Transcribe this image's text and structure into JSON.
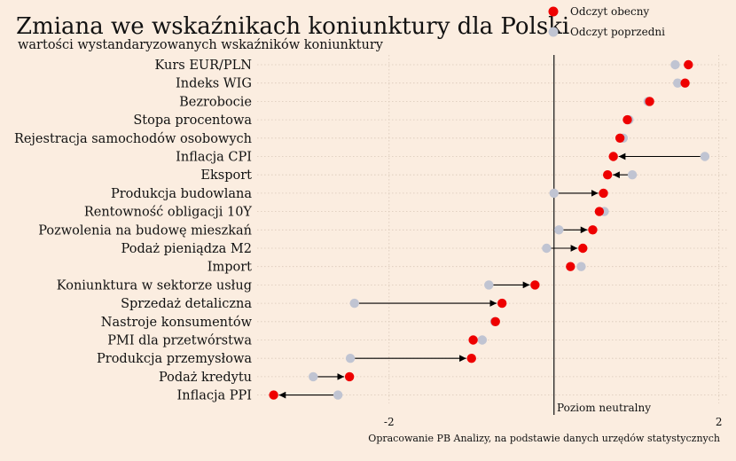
{
  "colors": {
    "background": "#fbede0",
    "current": "#ee0000",
    "previous": "#c0c4d2",
    "arrow": "#000000"
  },
  "chart_data": {
    "type": "scatter",
    "title": "Zmiana we wskaźnikach koniunktury dla Polski",
    "subtitle": "wartości wystandaryzowanych wskaźników koniunktury",
    "xlim": [
      -3.6,
      2.1
    ],
    "x_ticks": [
      -2,
      0,
      2
    ],
    "x_tick_labels": [
      "-2",
      "",
      "2"
    ],
    "grid": true,
    "legend_placement": "top-right",
    "legend": [
      {
        "key": "current",
        "label": "Odczyt obecny"
      },
      {
        "key": "previous",
        "label": "Odczyt poprzedni"
      }
    ],
    "annotation": "Poziom neutralny",
    "source": "Opracowanie PB Analizy, na podstawie danych urzędów statystycznych",
    "categories": [
      "Kurs EUR/PLN",
      "Indeks WIG",
      "Bezrobocie",
      "Stopa procentowa",
      "Rejestracja samochodów osobowych",
      "Inflacja CPI",
      "Eksport",
      "Produkcja budowlana",
      "Rentowność obligacji 10Y",
      "Pozwolenia na budowę mieszkań",
      "Podaż pieniądza M2",
      "Import",
      "Koniunktura w sektorze usług",
      "Sprzedaż detaliczna",
      "Nastroje konsumentów",
      "PMI dla przetwórstwa",
      "Produkcja przemysłowa",
      "Podaż kredytu",
      "Inflacja PPI"
    ],
    "series": [
      {
        "name": "Odczyt obecny",
        "values": [
          1.63,
          1.59,
          1.16,
          0.89,
          0.8,
          0.72,
          0.65,
          0.6,
          0.55,
          0.47,
          0.35,
          0.2,
          -0.23,
          -0.63,
          -0.71,
          -0.98,
          -1.0,
          -2.48,
          -3.4
        ]
      },
      {
        "name": "Odczyt poprzedni",
        "values": [
          1.47,
          1.5,
          1.14,
          0.91,
          0.84,
          1.83,
          0.95,
          0.0,
          0.61,
          0.06,
          -0.09,
          0.33,
          -0.79,
          -2.42,
          -0.72,
          -0.87,
          -2.47,
          -2.92,
          -2.62
        ]
      }
    ]
  }
}
